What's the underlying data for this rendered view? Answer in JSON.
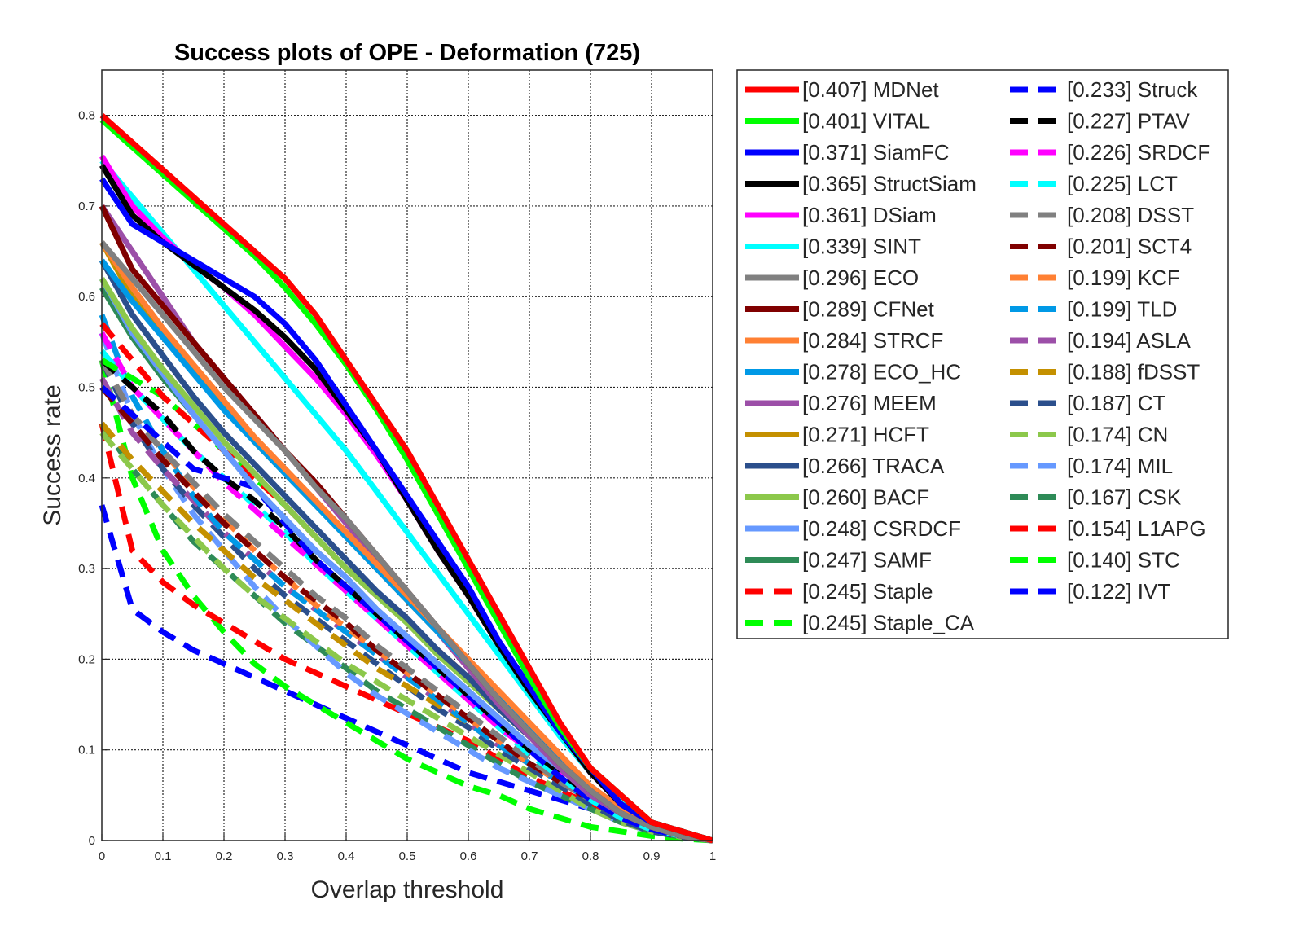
{
  "chart_data": {
    "type": "line",
    "title": "Success plots of OPE - Deformation (725)",
    "xlabel": "Overlap threshold",
    "ylabel": "Success rate",
    "xlim": [
      0,
      1
    ],
    "ylim": [
      0,
      0.85
    ],
    "x_ticks": [
      "0",
      "0.1",
      "0.2",
      "0.3",
      "0.4",
      "0.5",
      "0.6",
      "0.7",
      "0.8",
      "0.9",
      "1"
    ],
    "y_ticks": [
      "0",
      "0.1",
      "0.2",
      "0.3",
      "0.4",
      "0.5",
      "0.6",
      "0.7",
      "0.8"
    ],
    "grid": true,
    "legend_position": "outside-right",
    "x": [
      0,
      0.05,
      0.1,
      0.15,
      0.2,
      0.25,
      0.3,
      0.35,
      0.4,
      0.45,
      0.5,
      0.55,
      0.6,
      0.65,
      0.7,
      0.75,
      0.8,
      0.85,
      0.9,
      0.95,
      1.0
    ],
    "series": [
      {
        "name": "[0.407] MDNet",
        "color": "#ff0000",
        "dash": false,
        "values": [
          0.8,
          0.77,
          0.74,
          0.71,
          0.68,
          0.65,
          0.62,
          0.58,
          0.53,
          0.48,
          0.43,
          0.37,
          0.31,
          0.25,
          0.19,
          0.13,
          0.08,
          0.05,
          0.02,
          0.01,
          0.0
        ]
      },
      {
        "name": "[0.401] VITAL",
        "color": "#00ff00",
        "dash": false,
        "values": [
          0.795,
          0.765,
          0.735,
          0.705,
          0.675,
          0.645,
          0.61,
          0.57,
          0.525,
          0.475,
          0.42,
          0.36,
          0.3,
          0.24,
          0.18,
          0.125,
          0.08,
          0.05,
          0.02,
          0.01,
          0.0
        ]
      },
      {
        "name": "[0.371] SiamFC",
        "color": "#0000ff",
        "dash": false,
        "values": [
          0.73,
          0.68,
          0.66,
          0.64,
          0.62,
          0.6,
          0.57,
          0.53,
          0.48,
          0.43,
          0.38,
          0.33,
          0.28,
          0.22,
          0.17,
          0.12,
          0.08,
          0.04,
          0.02,
          0.01,
          0.0
        ]
      },
      {
        "name": "[0.365] StructSiam",
        "color": "#000000",
        "dash": false,
        "values": [
          0.745,
          0.69,
          0.66,
          0.635,
          0.61,
          0.585,
          0.555,
          0.52,
          0.475,
          0.43,
          0.375,
          0.32,
          0.27,
          0.215,
          0.165,
          0.12,
          0.075,
          0.04,
          0.02,
          0.01,
          0.0
        ]
      },
      {
        "name": "[0.361] DSiam",
        "color": "#ff00ff",
        "dash": false,
        "values": [
          0.755,
          0.7,
          0.665,
          0.635,
          0.61,
          0.58,
          0.545,
          0.51,
          0.47,
          0.425,
          0.375,
          0.32,
          0.27,
          0.215,
          0.165,
          0.12,
          0.075,
          0.04,
          0.02,
          0.01,
          0.0
        ]
      },
      {
        "name": "[0.339] SINT",
        "color": "#00ffff",
        "dash": false,
        "values": [
          0.75,
          0.71,
          0.67,
          0.63,
          0.59,
          0.55,
          0.51,
          0.47,
          0.43,
          0.385,
          0.34,
          0.295,
          0.25,
          0.205,
          0.16,
          0.115,
          0.075,
          0.045,
          0.02,
          0.01,
          0.0
        ]
      },
      {
        "name": "[0.296] ECO",
        "color": "#808080",
        "dash": false,
        "values": [
          0.66,
          0.62,
          0.58,
          0.54,
          0.5,
          0.465,
          0.43,
          0.39,
          0.355,
          0.315,
          0.275,
          0.235,
          0.195,
          0.155,
          0.12,
          0.085,
          0.055,
          0.03,
          0.015,
          0.005,
          0.0
        ]
      },
      {
        "name": "[0.289] CFNet",
        "color": "#800000",
        "dash": false,
        "values": [
          0.7,
          0.63,
          0.59,
          0.55,
          0.51,
          0.47,
          0.43,
          0.395,
          0.355,
          0.315,
          0.275,
          0.235,
          0.195,
          0.155,
          0.12,
          0.085,
          0.055,
          0.03,
          0.015,
          0.005,
          0.0
        ]
      },
      {
        "name": "[0.284] STRCF",
        "color": "#ff8033",
        "dash": false,
        "values": [
          0.66,
          0.61,
          0.565,
          0.525,
          0.485,
          0.445,
          0.41,
          0.375,
          0.34,
          0.305,
          0.27,
          0.235,
          0.2,
          0.165,
          0.13,
          0.095,
          0.06,
          0.035,
          0.015,
          0.005,
          0.0
        ]
      },
      {
        "name": "[0.278] ECO_HC",
        "color": "#0099e6",
        "dash": false,
        "values": [
          0.64,
          0.595,
          0.555,
          0.515,
          0.475,
          0.44,
          0.405,
          0.37,
          0.335,
          0.3,
          0.265,
          0.23,
          0.195,
          0.16,
          0.125,
          0.09,
          0.06,
          0.035,
          0.015,
          0.005,
          0.0
        ]
      },
      {
        "name": "[0.276] MEEM",
        "color": "#9c4fa8",
        "dash": false,
        "values": [
          0.7,
          0.65,
          0.6,
          0.55,
          0.51,
          0.47,
          0.43,
          0.39,
          0.35,
          0.31,
          0.27,
          0.23,
          0.19,
          0.15,
          0.115,
          0.08,
          0.05,
          0.03,
          0.015,
          0.005,
          0.0
        ]
      },
      {
        "name": "[0.271] HCFT",
        "color": "#c49000",
        "dash": false,
        "values": [
          0.66,
          0.6,
          0.56,
          0.52,
          0.48,
          0.44,
          0.405,
          0.37,
          0.335,
          0.3,
          0.265,
          0.23,
          0.195,
          0.16,
          0.125,
          0.09,
          0.06,
          0.035,
          0.015,
          0.005,
          0.0
        ]
      },
      {
        "name": "[0.266] TRACA",
        "color": "#2b4f8c",
        "dash": false,
        "values": [
          0.64,
          0.58,
          0.535,
          0.49,
          0.45,
          0.415,
          0.38,
          0.345,
          0.31,
          0.275,
          0.245,
          0.21,
          0.18,
          0.145,
          0.115,
          0.085,
          0.055,
          0.03,
          0.015,
          0.005,
          0.0
        ]
      },
      {
        "name": "[0.260] BACF",
        "color": "#8cc84b",
        "dash": false,
        "values": [
          0.62,
          0.565,
          0.52,
          0.48,
          0.44,
          0.405,
          0.37,
          0.335,
          0.3,
          0.27,
          0.24,
          0.205,
          0.175,
          0.145,
          0.115,
          0.085,
          0.055,
          0.03,
          0.015,
          0.005,
          0.0
        ]
      },
      {
        "name": "[0.248] CSRDCF",
        "color": "#6699ff",
        "dash": false,
        "values": [
          0.62,
          0.56,
          0.515,
          0.47,
          0.43,
          0.39,
          0.355,
          0.32,
          0.29,
          0.255,
          0.225,
          0.195,
          0.165,
          0.135,
          0.105,
          0.08,
          0.05,
          0.03,
          0.015,
          0.005,
          0.0
        ]
      },
      {
        "name": "[0.247] SAMF",
        "color": "#2e8b57",
        "dash": false,
        "values": [
          0.61,
          0.555,
          0.51,
          0.47,
          0.43,
          0.39,
          0.355,
          0.32,
          0.29,
          0.255,
          0.225,
          0.195,
          0.165,
          0.135,
          0.105,
          0.08,
          0.05,
          0.03,
          0.015,
          0.005,
          0.0
        ]
      },
      {
        "name": "[0.245] Staple",
        "color": "#ff0000",
        "dash": true,
        "values": [
          0.57,
          0.53,
          0.49,
          0.46,
          0.43,
          0.4,
          0.37,
          0.335,
          0.3,
          0.27,
          0.24,
          0.21,
          0.18,
          0.145,
          0.115,
          0.085,
          0.055,
          0.03,
          0.015,
          0.005,
          0.0
        ]
      },
      {
        "name": "[0.245] Staple_CA",
        "color": "#00ff00",
        "dash": true,
        "values": [
          0.53,
          0.51,
          0.49,
          0.46,
          0.43,
          0.4,
          0.37,
          0.335,
          0.3,
          0.27,
          0.24,
          0.21,
          0.18,
          0.145,
          0.115,
          0.085,
          0.055,
          0.03,
          0.015,
          0.005,
          0.0
        ]
      },
      {
        "name": "[0.233] Struck",
        "color": "#0000ff",
        "dash": true,
        "values": [
          0.5,
          0.47,
          0.44,
          0.41,
          0.4,
          0.39,
          0.35,
          0.31,
          0.28,
          0.25,
          0.22,
          0.19,
          0.16,
          0.13,
          0.1,
          0.07,
          0.045,
          0.025,
          0.012,
          0.005,
          0.0
        ]
      },
      {
        "name": "[0.227] PTAV",
        "color": "#000000",
        "dash": true,
        "values": [
          0.53,
          0.5,
          0.47,
          0.43,
          0.4,
          0.375,
          0.345,
          0.31,
          0.28,
          0.25,
          0.22,
          0.19,
          0.16,
          0.13,
          0.1,
          0.075,
          0.05,
          0.03,
          0.015,
          0.005,
          0.0
        ]
      },
      {
        "name": "[0.226] SRDCF",
        "color": "#ff00ff",
        "dash": true,
        "values": [
          0.56,
          0.5,
          0.465,
          0.43,
          0.395,
          0.365,
          0.335,
          0.305,
          0.275,
          0.245,
          0.215,
          0.185,
          0.155,
          0.125,
          0.1,
          0.075,
          0.05,
          0.03,
          0.015,
          0.005,
          0.0
        ]
      },
      {
        "name": "[0.225] LCT",
        "color": "#00ffff",
        "dash": true,
        "values": [
          0.54,
          0.5,
          0.465,
          0.43,
          0.4,
          0.37,
          0.34,
          0.305,
          0.275,
          0.245,
          0.215,
          0.185,
          0.155,
          0.125,
          0.095,
          0.07,
          0.045,
          0.025,
          0.012,
          0.005,
          0.0
        ]
      },
      {
        "name": "[0.208] DSST",
        "color": "#808080",
        "dash": true,
        "values": [
          0.53,
          0.47,
          0.43,
          0.395,
          0.36,
          0.33,
          0.3,
          0.27,
          0.245,
          0.215,
          0.19,
          0.165,
          0.14,
          0.115,
          0.09,
          0.065,
          0.045,
          0.025,
          0.012,
          0.005,
          0.0
        ]
      },
      {
        "name": "[0.201] SCT4",
        "color": "#800000",
        "dash": true,
        "values": [
          0.5,
          0.46,
          0.42,
          0.385,
          0.35,
          0.32,
          0.29,
          0.265,
          0.24,
          0.21,
          0.185,
          0.16,
          0.135,
          0.11,
          0.085,
          0.065,
          0.045,
          0.025,
          0.012,
          0.005,
          0.0
        ]
      },
      {
        "name": "[0.199] KCF",
        "color": "#ff8033",
        "dash": true,
        "values": [
          0.53,
          0.47,
          0.43,
          0.39,
          0.355,
          0.32,
          0.29,
          0.26,
          0.235,
          0.21,
          0.185,
          0.16,
          0.135,
          0.11,
          0.085,
          0.065,
          0.045,
          0.025,
          0.012,
          0.005,
          0.0
        ]
      },
      {
        "name": "[0.199] TLD",
        "color": "#0099e6",
        "dash": true,
        "values": [
          0.58,
          0.49,
          0.43,
          0.38,
          0.34,
          0.31,
          0.28,
          0.255,
          0.23,
          0.205,
          0.18,
          0.155,
          0.13,
          0.105,
          0.085,
          0.065,
          0.045,
          0.025,
          0.012,
          0.005,
          0.0
        ]
      },
      {
        "name": "[0.194] ASLA",
        "color": "#9c4fa8",
        "dash": true,
        "values": [
          0.51,
          0.45,
          0.41,
          0.375,
          0.34,
          0.31,
          0.28,
          0.255,
          0.23,
          0.205,
          0.18,
          0.155,
          0.13,
          0.105,
          0.085,
          0.065,
          0.045,
          0.025,
          0.012,
          0.005,
          0.0
        ]
      },
      {
        "name": "[0.188] fDSST",
        "color": "#c49000",
        "dash": true,
        "values": [
          0.46,
          0.42,
          0.385,
          0.35,
          0.32,
          0.29,
          0.265,
          0.24,
          0.215,
          0.19,
          0.17,
          0.15,
          0.13,
          0.105,
          0.085,
          0.065,
          0.045,
          0.025,
          0.012,
          0.005,
          0.0
        ]
      },
      {
        "name": "[0.187] CT",
        "color": "#2b4f8c",
        "dash": true,
        "values": [
          0.53,
          0.46,
          0.41,
          0.37,
          0.335,
          0.3,
          0.27,
          0.245,
          0.22,
          0.195,
          0.17,
          0.145,
          0.125,
          0.1,
          0.08,
          0.06,
          0.04,
          0.022,
          0.01,
          0.004,
          0.0
        ]
      },
      {
        "name": "[0.174] CN",
        "color": "#8cc84b",
        "dash": true,
        "values": [
          0.45,
          0.41,
          0.37,
          0.335,
          0.3,
          0.27,
          0.245,
          0.22,
          0.195,
          0.175,
          0.155,
          0.135,
          0.115,
          0.095,
          0.075,
          0.055,
          0.035,
          0.02,
          0.01,
          0.004,
          0.0
        ]
      },
      {
        "name": "[0.174] MIL",
        "color": "#6699ff",
        "dash": true,
        "values": [
          0.56,
          0.47,
          0.41,
          0.36,
          0.32,
          0.28,
          0.245,
          0.215,
          0.185,
          0.16,
          0.14,
          0.12,
          0.1,
          0.08,
          0.065,
          0.05,
          0.035,
          0.02,
          0.01,
          0.004,
          0.0
        ]
      },
      {
        "name": "[0.167] CSK",
        "color": "#2e8b57",
        "dash": true,
        "values": [
          0.46,
          0.41,
          0.37,
          0.33,
          0.3,
          0.27,
          0.24,
          0.215,
          0.19,
          0.165,
          0.145,
          0.125,
          0.105,
          0.085,
          0.065,
          0.05,
          0.035,
          0.02,
          0.01,
          0.004,
          0.0
        ]
      },
      {
        "name": "[0.154] L1APG",
        "color": "#ff0000",
        "dash": true,
        "values": [
          0.46,
          0.32,
          0.285,
          0.26,
          0.24,
          0.22,
          0.2,
          0.185,
          0.17,
          0.155,
          0.14,
          0.125,
          0.11,
          0.09,
          0.07,
          0.055,
          0.04,
          0.025,
          0.012,
          0.005,
          0.0
        ]
      },
      {
        "name": "[0.140] STC",
        "color": "#00ff00",
        "dash": true,
        "values": [
          0.53,
          0.4,
          0.32,
          0.27,
          0.23,
          0.195,
          0.17,
          0.15,
          0.13,
          0.11,
          0.09,
          0.075,
          0.06,
          0.05,
          0.035,
          0.025,
          0.015,
          0.01,
          0.005,
          0.002,
          0.0
        ]
      },
      {
        "name": "[0.122] IVT",
        "color": "#0000ff",
        "dash": true,
        "values": [
          0.37,
          0.255,
          0.23,
          0.21,
          0.195,
          0.18,
          0.165,
          0.15,
          0.135,
          0.12,
          0.105,
          0.09,
          0.075,
          0.065,
          0.055,
          0.045,
          0.035,
          0.025,
          0.015,
          0.006,
          0.0
        ]
      }
    ]
  }
}
